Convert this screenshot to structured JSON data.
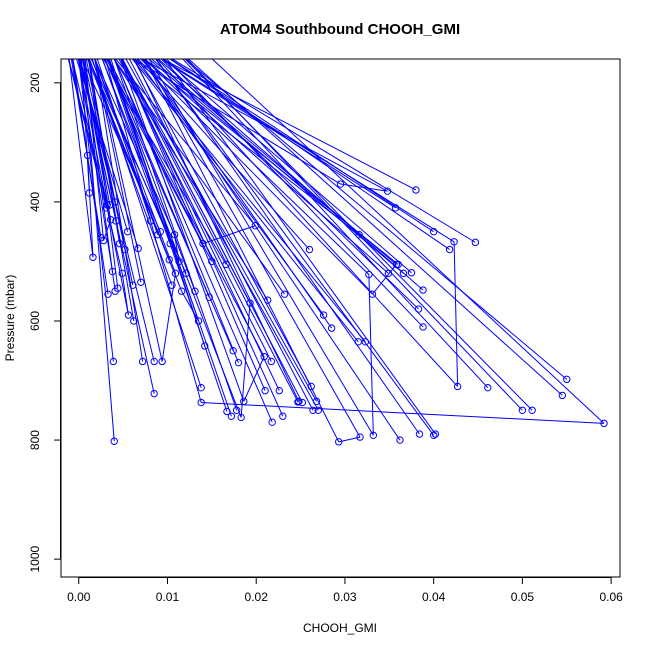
{
  "chart_data": {
    "type": "line",
    "title": "ATOM4 Southbound CHOOH_GMI",
    "xlabel": "CHOOH_GMI",
    "ylabel": "Pressure (mbar)",
    "xlim": [
      -0.002,
      0.061
    ],
    "ylim": [
      1030,
      160
    ],
    "y_reversed": true,
    "xticks": [
      "0.00",
      "0.01",
      "0.02",
      "0.03",
      "0.04",
      "0.05",
      "0.06"
    ],
    "yticks": [
      "200",
      "400",
      "600",
      "800",
      "1000"
    ],
    "grid": false,
    "series": [
      {
        "color": "#0000ff",
        "marker": "open-circle",
        "x": [
          0.0012,
          0.0035,
          0.0041,
          0.0025,
          0.0092,
          0.0103,
          0.014,
          0.0199,
          0.0213,
          0.0232,
          0.0248,
          0.0262,
          0.0264,
          0.0295,
          0.0348,
          0.04,
          0.0418,
          0.0447,
          0.0366,
          0.0316,
          0.0293,
          0.0317,
          0.0384,
          0.04,
          0.0362,
          0.0388,
          0.0402,
          0.0358,
          0.0331,
          0.0323,
          0.026,
          0.0276,
          0.023,
          0.0218,
          0.0209,
          0.0186,
          0.0178,
          0.0172,
          0.0166,
          0.0138,
          0.0142,
          0.0094,
          0.0109,
          0.0102,
          0.0085,
          0.0072,
          0.0062,
          0.0061,
          0.0056,
          0.0049,
          0.0046,
          0.0041,
          0.0039,
          0.0033,
          0.0031,
          0.0028,
          0.0036,
          0.0042,
          0.0055,
          0.0067,
          0.0081,
          0.0089,
          0.0108,
          0.0113,
          0.0121,
          0.0131,
          0.0147,
          0.015,
          0.0174,
          0.0183,
          0.0193,
          0.021,
          0.0226,
          0.0247,
          0.027,
          0.0285,
          0.0332,
          0.0327,
          0.0349,
          0.036,
          0.0375,
          0.0383,
          0.0388,
          0.0423,
          0.0427,
          0.0461,
          0.05,
          0.0511,
          0.0545,
          0.055,
          0.0592,
          0.0138,
          0.0167,
          0.0252,
          0.0085,
          0.007,
          0.004,
          0.001,
          0.0016,
          0.0032,
          0.0044,
          0.0052,
          0.0038,
          0.0105,
          0.0116,
          0.0135,
          0.018,
          0.0217,
          0.0268,
          0.0315,
          0.0357,
          0.038
        ],
        "y": [
          385,
          405,
          400,
          460,
          450,
          470,
          470,
          440,
          565,
          555,
          735,
          710,
          750,
          370,
          382,
          450,
          480,
          468,
          520,
          455,
          803,
          795,
          790,
          792,
          800,
          610,
          790,
          505,
          555,
          635,
          480,
          590,
          760,
          770,
          660,
          735,
          750,
          760,
          505,
          712,
          642,
          668,
          520,
          497,
          722,
          668,
          600,
          540,
          590,
          520,
          470,
          550,
          668,
          555,
          410,
          465,
          430,
          432,
          450,
          478,
          432,
          455,
          455,
          500,
          520,
          550,
          560,
          500,
          650,
          762,
          570,
          717,
          717,
          736,
          750,
          612,
          792,
          522,
          520,
          505,
          519,
          580,
          548,
          467,
          710,
          712,
          750,
          750,
          725,
          698,
          772,
          737,
          752,
          737,
          668,
          535,
          802,
          322,
          493,
          405,
          545,
          480,
          517,
          540,
          550,
          600,
          670,
          668,
          735,
          635,
          410,
          380
        ]
      }
    ]
  }
}
